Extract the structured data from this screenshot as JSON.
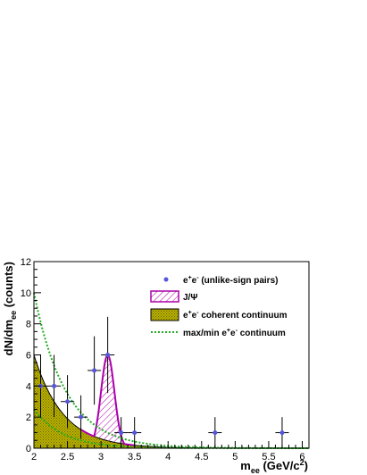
{
  "chart_data": {
    "type": "scatter",
    "xlim": [
      2,
      6.1
    ],
    "ylim": [
      0,
      12
    ],
    "x_ticks": [
      2,
      2.5,
      3,
      3.5,
      4,
      4.5,
      5,
      5.5,
      6
    ],
    "x_tick_labels": [
      "2",
      "2.5",
      "3",
      "3.5",
      "4",
      "4.5",
      "5",
      "5.5",
      "6"
    ],
    "y_ticks": [
      0,
      2,
      4,
      6,
      8,
      10,
      12
    ],
    "y_tick_labels": [
      "0",
      "2",
      "4",
      "6",
      "8",
      "10",
      "12"
    ],
    "xlabel": {
      "main": "m",
      "sub": "ee",
      "rest": " (GeV/c",
      "sup": "2",
      "close": ")"
    },
    "ylabel": {
      "main": "dN/dm",
      "sub": "ee",
      "rest": " (counts)"
    },
    "grid": false,
    "legend_position": "top-right",
    "legend": [
      {
        "key": "pairs",
        "pre": "e",
        "sup1": "+",
        "mid": "e",
        "sup2": "-",
        "post": " (unlike-sign pairs)"
      },
      {
        "key": "jpsi",
        "pre": "J/Ψ",
        "sup1": "",
        "mid": "",
        "sup2": "",
        "post": ""
      },
      {
        "key": "coherent",
        "pre": "e",
        "sup1": "+",
        "mid": "e",
        "sup2": "-",
        "post": " coherent continuum"
      },
      {
        "key": "maxmin",
        "pre": "max/min e",
        "sup1": "+",
        "mid": "e",
        "sup2": "-",
        "post": " continuum"
      }
    ],
    "series": [
      {
        "name": "e+e- (unlike-sign pairs)",
        "type": "scatter",
        "color": "#5555dd",
        "points": [
          {
            "x": 2.1,
            "y": 4,
            "xerr": 0.1,
            "yerr": 2
          },
          {
            "x": 2.3,
            "y": 4,
            "xerr": 0.1,
            "yerr": 2
          },
          {
            "x": 2.5,
            "y": 3,
            "xerr": 0.1,
            "yerr": 1.7
          },
          {
            "x": 2.7,
            "y": 2,
            "xerr": 0.1,
            "yerr": 1.4
          },
          {
            "x": 2.9,
            "y": 5,
            "xerr": 0.1,
            "yerr": 2.2
          },
          {
            "x": 3.1,
            "y": 6,
            "xerr": 0.1,
            "yerr": 2.45
          },
          {
            "x": 3.3,
            "y": 1,
            "xerr": 0.1,
            "yerr": 1
          },
          {
            "x": 3.5,
            "y": 1,
            "xerr": 0.1,
            "yerr": 1
          },
          {
            "x": 4.7,
            "y": 1,
            "xerr": 0.1,
            "yerr": 1
          },
          {
            "x": 5.7,
            "y": 1,
            "xerr": 0.1,
            "yerr": 1
          }
        ]
      },
      {
        "name": "J/Ψ",
        "type": "gaussian",
        "color": "#aa00aa",
        "amplitude": 6,
        "mean": 3.1,
        "sigma": 0.1
      },
      {
        "name": "e+e- coherent continuum",
        "type": "area",
        "color": "#b8b000",
        "amplitude": 6,
        "slope": 2.3,
        "x_start": 2
      },
      {
        "name": "max/min e+e- continuum",
        "type": "line",
        "color": "#22aa22",
        "curves": [
          {
            "amplitude": 10,
            "slope": 2.1,
            "x_start": 2
          },
          {
            "amplitude": 2.5,
            "slope": 2.3,
            "x_start": 2
          }
        ]
      }
    ]
  }
}
